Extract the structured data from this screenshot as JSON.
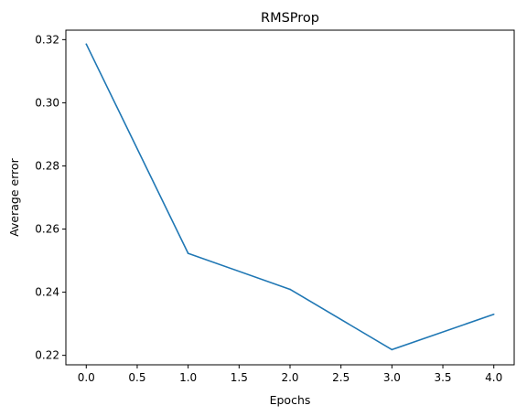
{
  "chart_data": {
    "type": "line",
    "title": "RMSProp",
    "xlabel": "Epochs",
    "ylabel": "Average error",
    "x": [
      0,
      1,
      2,
      3,
      4
    ],
    "series": [
      {
        "values": [
          0.3186,
          0.2523,
          0.2409,
          0.2218,
          0.233
        ],
        "color": "#1f77b4"
      }
    ],
    "xlim": [
      -0.2,
      4.2
    ],
    "ylim": [
      0.217,
      0.323
    ],
    "xticks": [
      0.0,
      0.5,
      1.0,
      1.5,
      2.0,
      2.5,
      3.0,
      3.5,
      4.0
    ],
    "xtick_labels": [
      "0.0",
      "0.5",
      "1.0",
      "1.5",
      "2.0",
      "2.5",
      "3.0",
      "3.5",
      "4.0"
    ],
    "yticks": [
      0.22,
      0.24,
      0.26,
      0.28,
      0.3,
      0.32
    ],
    "ytick_labels": [
      "0.22",
      "0.24",
      "0.26",
      "0.28",
      "0.30",
      "0.32"
    ],
    "grid": false,
    "legend": "none"
  }
}
